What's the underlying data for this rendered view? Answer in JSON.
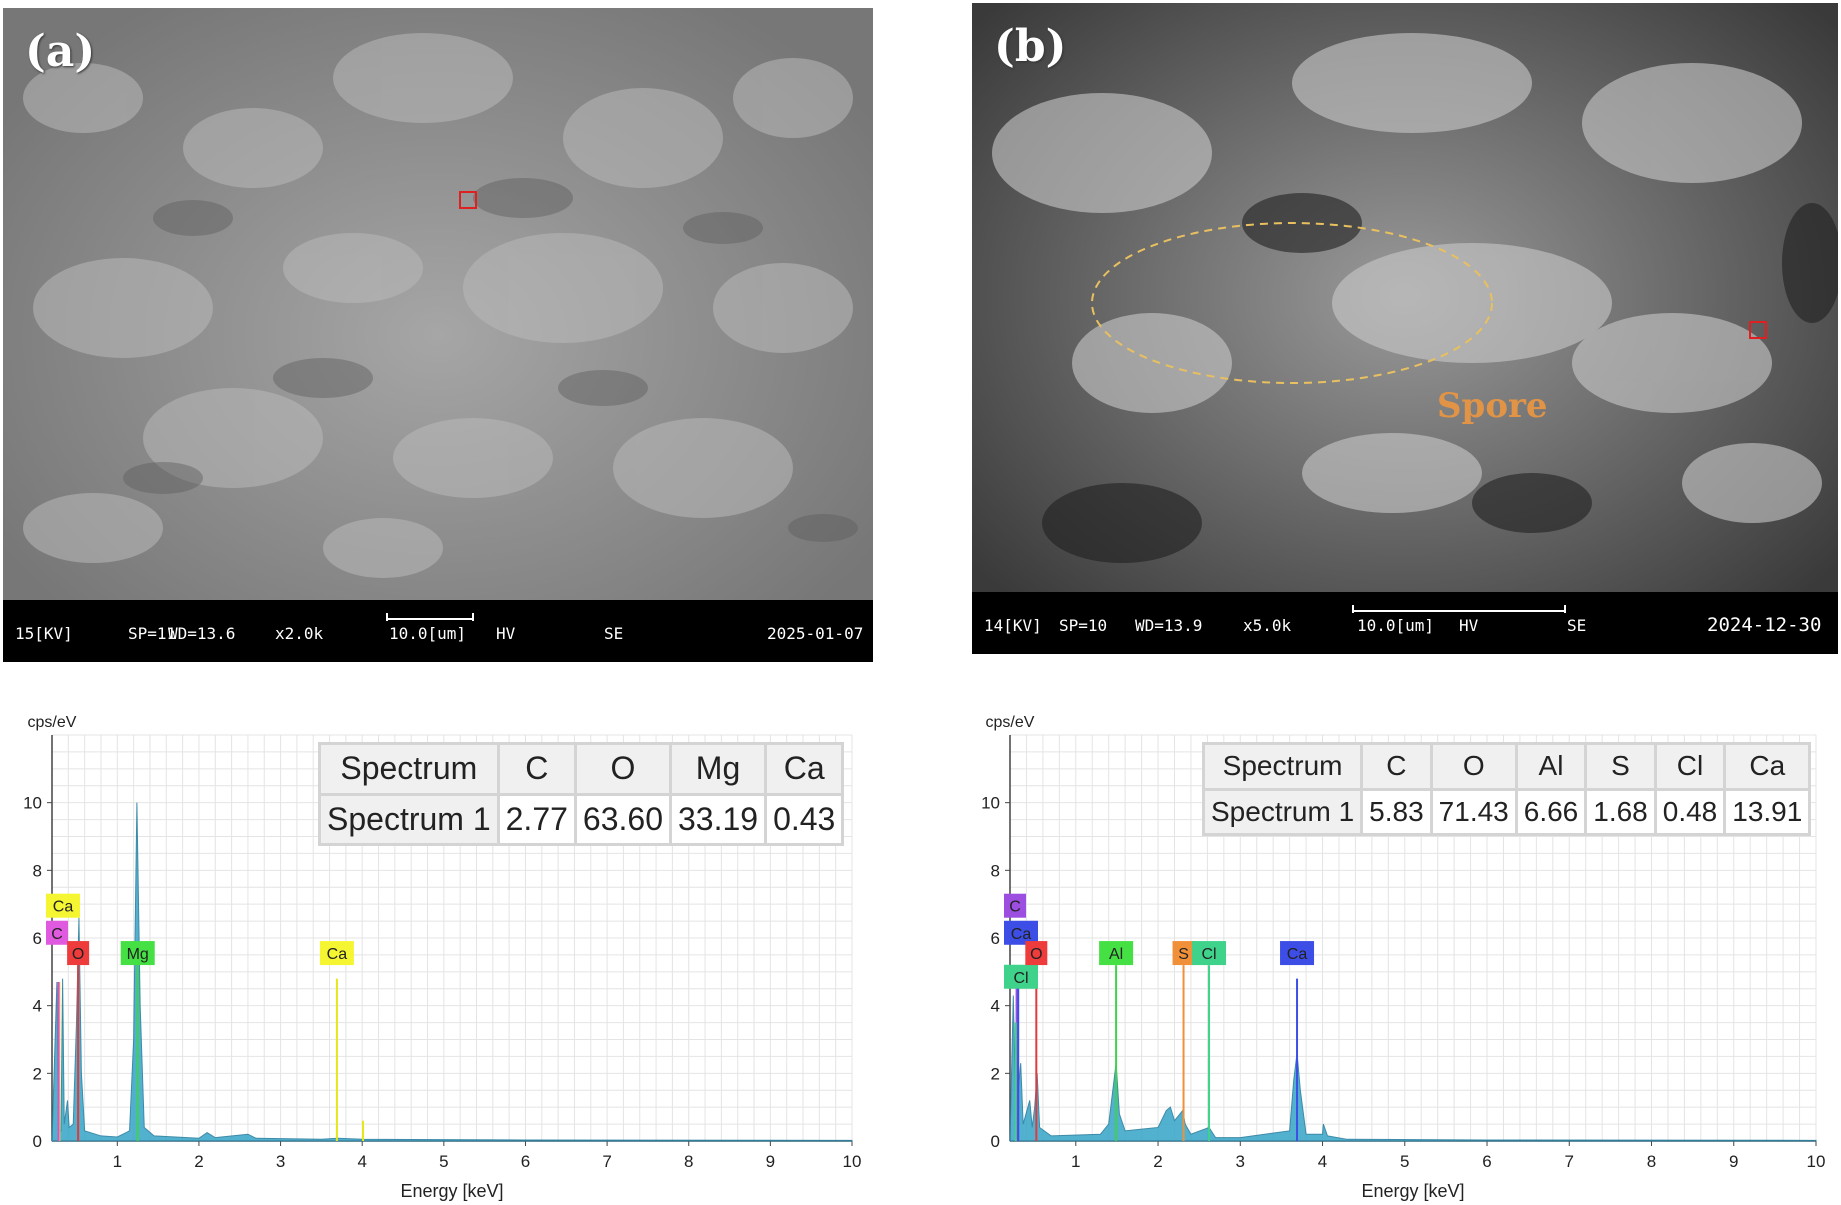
{
  "panels": [
    {
      "label": "(a)",
      "info_bar": {
        "kv": "15[KV]",
        "sp": "SP=11",
        "wd": "WD=13.6",
        "mag": "x2.0k",
        "scale": "10.0[um]",
        "mode": "HV",
        "detector": "SE",
        "date": "2025-01-07"
      }
    },
    {
      "label": "(b)",
      "annotation": "Spore",
      "info_bar": {
        "kv": "14[KV]",
        "sp": "SP=10",
        "wd": "WD=13.9",
        "mag": "x5.0k",
        "scale": "10.0[um]",
        "mode": "HV",
        "detector": "SE",
        "date": "2024-12-30"
      }
    }
  ],
  "colors": {
    "spectrum_fill": "#3fa9c9",
    "grid": "#e4e4e4",
    "box_red": "#e02020",
    "spore_label": "#e29446"
  },
  "chart_data": [
    {
      "type": "area",
      "ylabel": "cps/eV",
      "xlabel": "Energy [keV]",
      "xlim": [
        0.2,
        10
      ],
      "ylim": [
        0,
        12
      ],
      "xticks": [
        "1",
        "2",
        "3",
        "4",
        "5",
        "6",
        "7",
        "8",
        "9",
        "10"
      ],
      "yticks": [
        "2",
        "4",
        "6",
        "8",
        "10"
      ],
      "grid": true,
      "spectrum": [
        [
          0.2,
          0
        ],
        [
          0.26,
          4.7
        ],
        [
          0.28,
          0.3
        ],
        [
          0.31,
          0.3
        ],
        [
          0.33,
          4.8
        ],
        [
          0.35,
          0.5
        ],
        [
          0.39,
          1.2
        ],
        [
          0.41,
          0.4
        ],
        [
          0.46,
          0.5
        ],
        [
          0.5,
          3.5
        ],
        [
          0.53,
          6.6
        ],
        [
          0.56,
          2.0
        ],
        [
          0.6,
          0.3
        ],
        [
          0.8,
          0.15
        ],
        [
          1.0,
          0.12
        ],
        [
          1.15,
          0.3
        ],
        [
          1.2,
          3.0
        ],
        [
          1.24,
          10.0
        ],
        [
          1.28,
          4.0
        ],
        [
          1.33,
          0.4
        ],
        [
          1.45,
          0.15
        ],
        [
          2.0,
          0.08
        ],
        [
          2.1,
          0.25
        ],
        [
          2.2,
          0.1
        ],
        [
          2.6,
          0.2
        ],
        [
          2.7,
          0.08
        ],
        [
          3.5,
          0.05
        ],
        [
          3.7,
          0.08
        ],
        [
          4.0,
          0.05
        ],
        [
          6,
          0.03
        ],
        [
          10,
          0.02
        ]
      ],
      "element_lines": [
        {
          "element": "Ca",
          "x": 0.29,
          "y": 4.7,
          "color": "#e6e619"
        },
        {
          "element": "C",
          "x": 0.28,
          "y": 4.7,
          "color": "#d64fd6"
        },
        {
          "element": "O",
          "x": 0.52,
          "y": 5.2,
          "color": "#e23a3a"
        },
        {
          "element": "Mg",
          "x": 1.25,
          "y": 5.2,
          "color": "#3fd24a"
        },
        {
          "element": "Ca",
          "x": 3.69,
          "y": 4.8,
          "color": "#e6e619"
        },
        {
          "element": "",
          "x": 4.01,
          "y": 0.6,
          "color": "#e6e619"
        }
      ],
      "tags": [
        {
          "text": "Ca",
          "x": 0.3,
          "y": 6.6,
          "color": "#f5f531",
          "anchor": "start"
        },
        {
          "text": "C",
          "x": 0.3,
          "y": 5.8,
          "color": "#e05ae0",
          "anchor": "start"
        },
        {
          "text": "O",
          "x": 0.52,
          "y": 5.2,
          "color": "#ee3b3b",
          "anchor": "middle"
        },
        {
          "text": "Mg",
          "x": 1.25,
          "y": 5.2,
          "color": "#44e044",
          "anchor": "middle"
        },
        {
          "text": "Ca",
          "x": 3.69,
          "y": 5.2,
          "color": "#f5f531",
          "anchor": "middle"
        }
      ],
      "table": {
        "header": [
          "Spectrum",
          "C",
          "O",
          "Mg",
          "Ca"
        ],
        "rows": [
          [
            "Spectrum 1",
            "2.77",
            "63.60",
            "33.19",
            "0.43"
          ]
        ]
      }
    },
    {
      "type": "area",
      "ylabel": "cps/eV",
      "xlabel": "Energy [keV]",
      "xlim": [
        0.2,
        10
      ],
      "ylim": [
        0,
        12
      ],
      "xticks": [
        "1",
        "2",
        "3",
        "4",
        "5",
        "6",
        "7",
        "8",
        "9",
        "10"
      ],
      "yticks": [
        "2",
        "4",
        "6",
        "8",
        "10"
      ],
      "grid": true,
      "spectrum": [
        [
          0.2,
          0
        ],
        [
          0.24,
          4.3
        ],
        [
          0.27,
          1.0
        ],
        [
          0.3,
          1.5
        ],
        [
          0.33,
          2.3
        ],
        [
          0.36,
          0.5
        ],
        [
          0.44,
          1.2
        ],
        [
          0.47,
          0.4
        ],
        [
          0.5,
          1.0
        ],
        [
          0.53,
          2.0
        ],
        [
          0.56,
          0.4
        ],
        [
          0.7,
          0.15
        ],
        [
          1.3,
          0.2
        ],
        [
          1.4,
          0.5
        ],
        [
          1.45,
          1.5
        ],
        [
          1.49,
          2.3
        ],
        [
          1.53,
          0.8
        ],
        [
          1.6,
          0.3
        ],
        [
          2.0,
          0.4
        ],
        [
          2.1,
          0.9
        ],
        [
          2.15,
          1.0
        ],
        [
          2.2,
          0.6
        ],
        [
          2.3,
          0.9
        ],
        [
          2.33,
          0.5
        ],
        [
          2.4,
          0.2
        ],
        [
          2.62,
          0.4
        ],
        [
          2.7,
          0.1
        ],
        [
          3.0,
          0.1
        ],
        [
          3.6,
          0.3
        ],
        [
          3.65,
          1.8
        ],
        [
          3.69,
          2.6
        ],
        [
          3.73,
          1.5
        ],
        [
          3.8,
          0.2
        ],
        [
          4.0,
          0.2
        ],
        [
          4.01,
          0.5
        ],
        [
          4.06,
          0.15
        ],
        [
          4.3,
          0.05
        ],
        [
          6,
          0.03
        ],
        [
          10,
          0.02
        ]
      ],
      "element_lines": [
        {
          "element": "C",
          "x": 0.28,
          "y": 5.2,
          "color": "#9b4ee0"
        },
        {
          "element": "Ca",
          "x": 0.3,
          "y": 4.6,
          "color": "#3d4ee6"
        },
        {
          "element": "Cl",
          "x": 0.27,
          "y": 3.5,
          "color": "#3fd28a"
        },
        {
          "element": "O",
          "x": 0.52,
          "y": 5.2,
          "color": "#e23a3a"
        },
        {
          "element": "Al",
          "x": 1.49,
          "y": 5.2,
          "color": "#3fd24a"
        },
        {
          "element": "S",
          "x": 2.31,
          "y": 5.2,
          "color": "#f0913a"
        },
        {
          "element": "Cl",
          "x": 2.62,
          "y": 5.2,
          "color": "#3fd28a"
        },
        {
          "element": "Ca",
          "x": 3.69,
          "y": 4.8,
          "color": "#3d4ee6"
        }
      ],
      "tags": [
        {
          "text": "C",
          "x": 0.3,
          "y": 6.6,
          "color": "#9b4ee0",
          "anchor": "start"
        },
        {
          "text": "Ca",
          "x": 0.3,
          "y": 5.8,
          "color": "#3d4ee6",
          "anchor": "start"
        },
        {
          "text": "Cl",
          "x": 0.3,
          "y": 4.5,
          "color": "#3fd28a",
          "anchor": "start"
        },
        {
          "text": "O",
          "x": 0.52,
          "y": 5.2,
          "color": "#ee3b3b",
          "anchor": "middle"
        },
        {
          "text": "Al",
          "x": 1.49,
          "y": 5.2,
          "color": "#44e044",
          "anchor": "middle"
        },
        {
          "text": "S",
          "x": 2.31,
          "y": 5.2,
          "color": "#f0913a",
          "anchor": "middle"
        },
        {
          "text": "Cl",
          "x": 2.62,
          "y": 5.2,
          "color": "#3fd28a",
          "anchor": "middle"
        },
        {
          "text": "Ca",
          "x": 3.69,
          "y": 5.2,
          "color": "#3d4ee6",
          "anchor": "middle"
        }
      ],
      "table": {
        "header": [
          "Spectrum",
          "C",
          "O",
          "Al",
          "S",
          "Cl",
          "Ca"
        ],
        "rows": [
          [
            "Spectrum 1",
            "5.83",
            "71.43",
            "6.66",
            "1.68",
            "0.48",
            "13.91"
          ]
        ]
      }
    }
  ]
}
